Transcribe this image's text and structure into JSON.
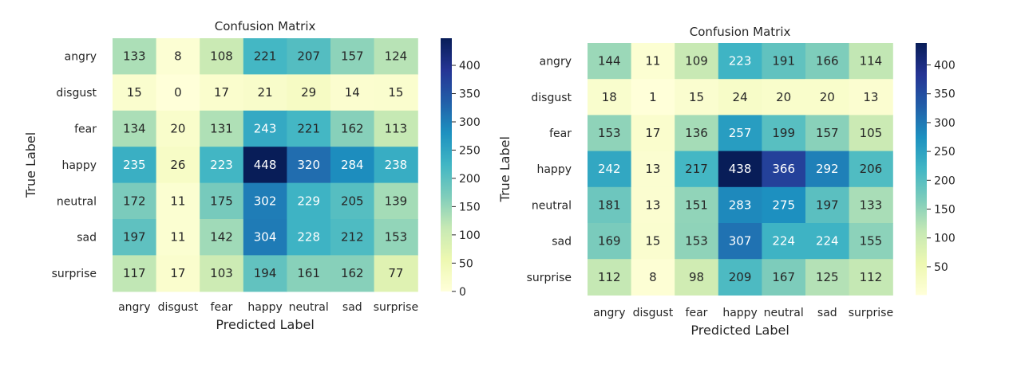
{
  "chart_data": [
    {
      "type": "heatmap",
      "title": "Confusion Matrix",
      "xlabel": "Predicted Label",
      "ylabel": "True Label",
      "x_categories": [
        "angry",
        "disgust",
        "fear",
        "happy",
        "neutral",
        "sad",
        "surprise"
      ],
      "y_categories": [
        "angry",
        "disgust",
        "fear",
        "happy",
        "neutral",
        "sad",
        "surprise"
      ],
      "values": [
        [
          133,
          8,
          108,
          221,
          207,
          157,
          124
        ],
        [
          15,
          0,
          17,
          21,
          29,
          14,
          15
        ],
        [
          134,
          20,
          131,
          243,
          221,
          162,
          113
        ],
        [
          235,
          26,
          223,
          448,
          320,
          284,
          238
        ],
        [
          172,
          11,
          175,
          302,
          229,
          205,
          139
        ],
        [
          197,
          11,
          142,
          304,
          228,
          212,
          153
        ],
        [
          117,
          17,
          103,
          194,
          161,
          162,
          77
        ]
      ],
      "colormap": "YlGnBu",
      "color_range": [
        0,
        448
      ],
      "colorbar_ticks": [
        0,
        50,
        100,
        150,
        200,
        250,
        300,
        350,
        400
      ]
    },
    {
      "type": "heatmap",
      "title": "Confusion Matrix",
      "xlabel": "Predicted Label",
      "ylabel": "True Label",
      "x_categories": [
        "angry",
        "disgust",
        "fear",
        "happy",
        "neutral",
        "sad",
        "surprise"
      ],
      "y_categories": [
        "angry",
        "disgust",
        "fear",
        "happy",
        "neutral",
        "sad",
        "surprise"
      ],
      "values": [
        [
          144,
          11,
          109,
          223,
          191,
          166,
          114
        ],
        [
          18,
          1,
          15,
          24,
          20,
          20,
          13
        ],
        [
          153,
          17,
          136,
          257,
          199,
          157,
          105
        ],
        [
          242,
          13,
          217,
          438,
          366,
          292,
          206
        ],
        [
          181,
          13,
          151,
          283,
          275,
          197,
          133
        ],
        [
          169,
          15,
          153,
          307,
          224,
          224,
          155
        ],
        [
          112,
          8,
          98,
          209,
          167,
          125,
          112
        ]
      ],
      "colormap": "YlGnBu",
      "color_range": [
        1,
        438
      ],
      "colorbar_ticks": [
        50,
        100,
        150,
        200,
        250,
        300,
        350,
        400
      ]
    }
  ]
}
